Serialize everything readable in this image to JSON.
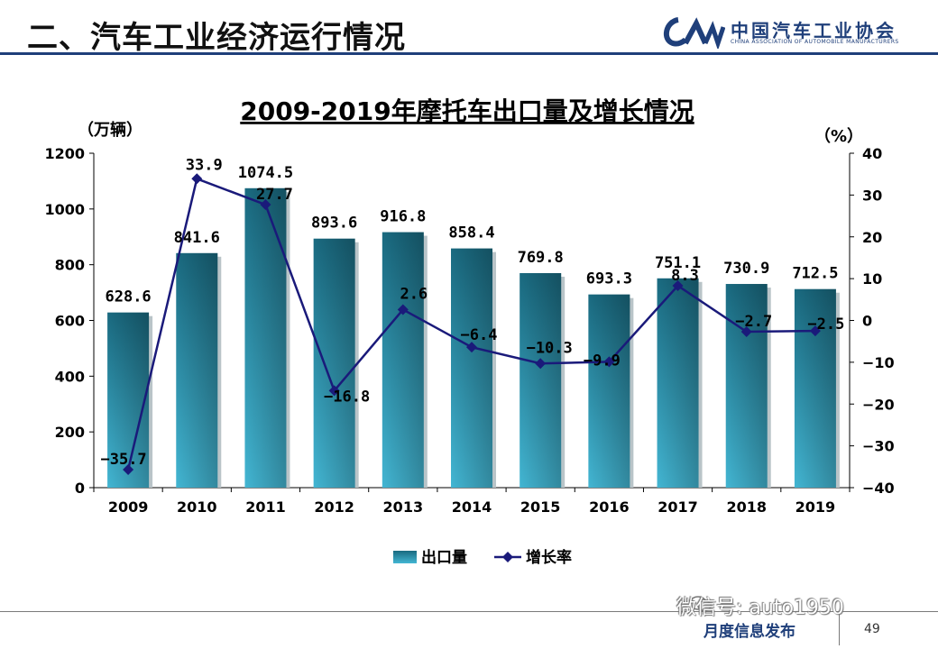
{
  "header": {
    "title": "二、汽车工业经济运行情况",
    "logo_cn": "中国汽车工业协会",
    "logo_en": "CHINA ASSOCIATION OF AUTOMOBILE MANUFACTURERS"
  },
  "footer": {
    "label": "月度信息发布",
    "page": "49",
    "watermark": "微信号: auto1950"
  },
  "chart_data": {
    "type": "bar",
    "title": "2009-2019年摩托车出口量及增长情况",
    "categories": [
      "2009",
      "2010",
      "2011",
      "2012",
      "2013",
      "2014",
      "2015",
      "2016",
      "2017",
      "2018",
      "2019"
    ],
    "series": [
      {
        "name": "出口量",
        "type": "bar",
        "axis": "left",
        "values": [
          628.6,
          841.6,
          1074.5,
          893.6,
          916.8,
          858.4,
          769.8,
          693.3,
          751.1,
          730.9,
          712.5
        ],
        "labels": [
          "628.6",
          "841.6",
          "1074.5",
          "893.6",
          "916.8",
          "858.4",
          "769.8",
          "693.3",
          "751.1",
          "730.9",
          "712.5"
        ],
        "color": "#2b8aa8"
      },
      {
        "name": "增长率",
        "type": "line",
        "axis": "right",
        "values": [
          -35.7,
          33.9,
          27.7,
          -16.8,
          2.6,
          -6.4,
          -10.3,
          -9.9,
          8.3,
          -2.7,
          -2.5
        ],
        "labels": [
          "−35.7",
          "33.9",
          "27.7",
          "−16.8",
          "2.6",
          "−6.4",
          "−10.3",
          "−9.9",
          "8.3",
          "−2.7",
          "−2.5"
        ],
        "color": "#1a1a7a"
      }
    ],
    "ylabel": "（万辆）",
    "y2label": "（%）",
    "ylim": [
      0,
      1200
    ],
    "y2lim": [
      -40,
      40
    ],
    "yticks": [
      "0",
      "200",
      "400",
      "600",
      "800",
      "1000",
      "1200"
    ],
    "y2ticks": [
      "−40",
      "−30",
      "−20",
      "−10",
      "0",
      "10",
      "20",
      "30",
      "40"
    ],
    "grid": false,
    "legend": "bottom"
  }
}
